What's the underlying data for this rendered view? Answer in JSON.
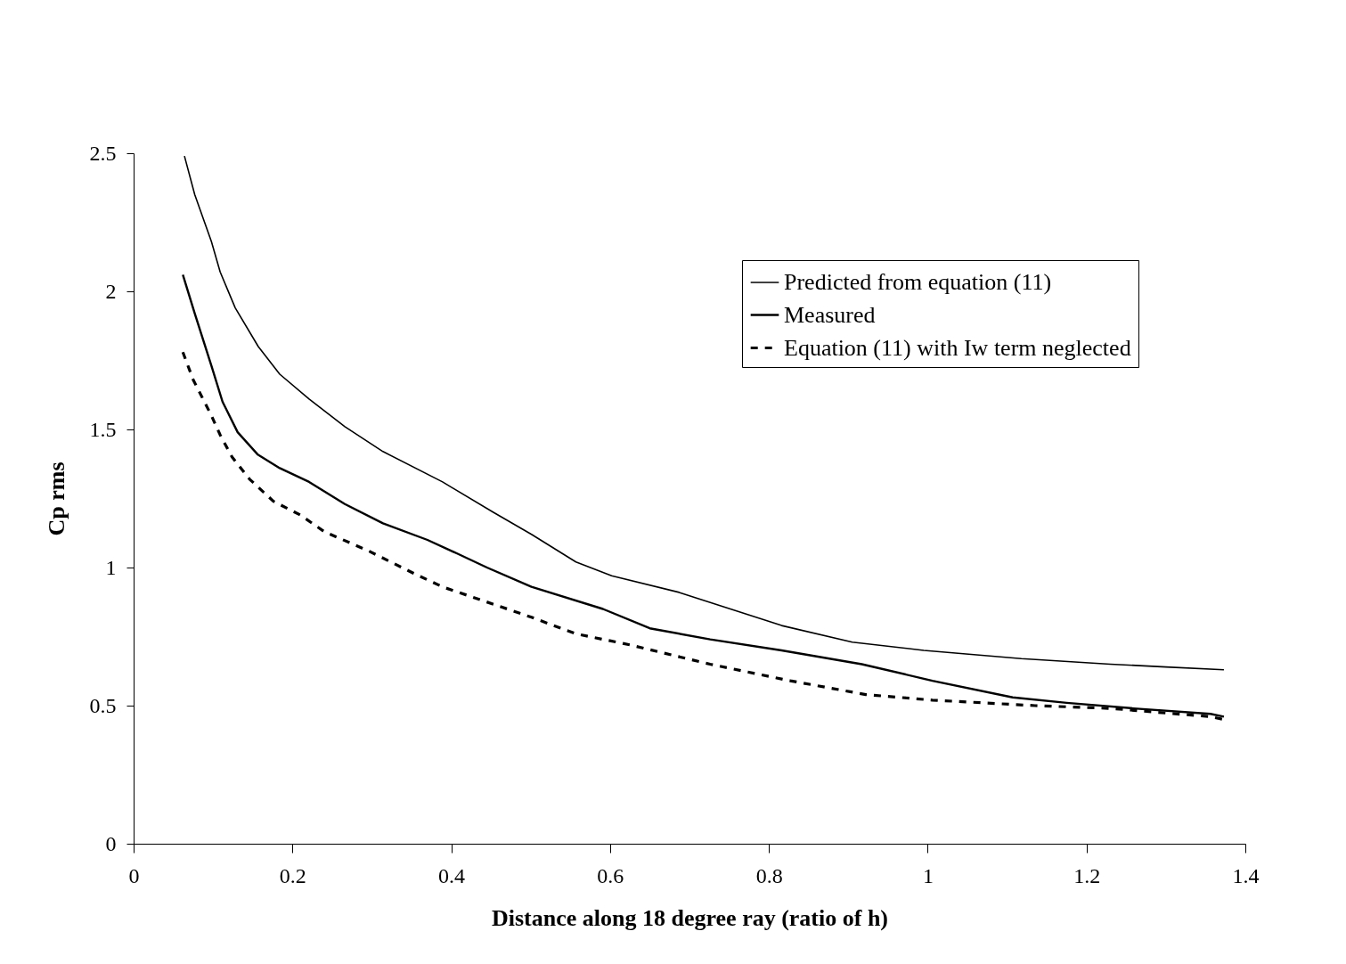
{
  "chart_data": {
    "type": "line",
    "xlabel": "Distance along 18 degree ray (ratio of h)",
    "ylabel": "Cp rms",
    "xlim": [
      0,
      1.4
    ],
    "xticks": [
      0,
      0.2,
      0.4,
      0.6,
      0.8,
      1,
      1.2,
      1.4
    ],
    "ylim": [
      0,
      2.5
    ],
    "yticks": [
      0,
      0.5,
      1,
      1.5,
      2,
      2.5
    ],
    "grid": false,
    "legend": "top right",
    "series": [
      {
        "name": "Predicted from equation (11)",
        "color": "#000000",
        "line_style": "solid",
        "x": [
          0.064,
          0.077,
          0.098,
          0.109,
          0.128,
          0.157,
          0.184,
          0.221,
          0.266,
          0.314,
          0.389,
          0.453,
          0.501,
          0.557,
          0.602,
          0.687,
          0.816,
          0.905,
          0.995,
          1.118,
          1.23,
          1.3,
          1.373
        ],
        "values": [
          2.49,
          2.35,
          2.18,
          2.07,
          1.94,
          1.8,
          1.7,
          1.61,
          1.51,
          1.42,
          1.31,
          1.2,
          1.12,
          1.02,
          0.97,
          0.91,
          0.79,
          0.73,
          0.7,
          0.67,
          0.65,
          0.64,
          0.63
        ]
      },
      {
        "name": "Measured",
        "color": "#000000",
        "line_style": "solid",
        "x": [
          0.062,
          0.077,
          0.098,
          0.112,
          0.131,
          0.156,
          0.184,
          0.221,
          0.266,
          0.314,
          0.37,
          0.408,
          0.445,
          0.501,
          0.591,
          0.65,
          0.726,
          0.816,
          0.917,
          1.006,
          1.107,
          1.175,
          1.259,
          1.356,
          1.373
        ],
        "values": [
          2.06,
          1.92,
          1.73,
          1.6,
          1.49,
          1.41,
          1.36,
          1.31,
          1.23,
          1.16,
          1.1,
          1.05,
          1,
          0.93,
          0.85,
          0.78,
          0.74,
          0.7,
          0.65,
          0.59,
          0.53,
          0.51,
          0.49,
          0.47,
          0.46
        ]
      },
      {
        "name": "Equation (11) with Iw term neglected",
        "color": "#000000",
        "line_style": "dashed",
        "x": [
          0.062,
          0.075,
          0.098,
          0.109,
          0.124,
          0.146,
          0.176,
          0.21,
          0.24,
          0.296,
          0.352,
          0.389,
          0.501,
          0.557,
          0.625,
          0.726,
          0.827,
          0.922,
          1.006,
          1.135,
          1.23,
          1.356,
          1.373
        ],
        "values": [
          1.78,
          1.68,
          1.55,
          1.48,
          1.4,
          1.32,
          1.24,
          1.19,
          1.13,
          1.06,
          0.98,
          0.93,
          0.82,
          0.76,
          0.72,
          0.65,
          0.59,
          0.54,
          0.52,
          0.5,
          0.49,
          0.46,
          0.45
        ]
      }
    ]
  }
}
